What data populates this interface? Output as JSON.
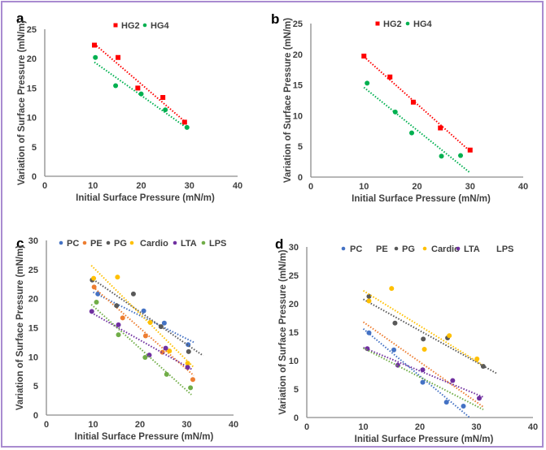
{
  "colors": {
    "HG2": "#ff0000",
    "HG4": "#00b050",
    "PC": "#4472c4",
    "PE": "#ed7d31",
    "PG": "#595959",
    "Cardio": "#ffc000",
    "LTA": "#7030a0",
    "LPS": "#70ad47",
    "frame": "#a98bd0"
  },
  "chart_data": [
    {
      "panel": "a",
      "type": "scatter",
      "xlabel": "Initial Surface Pressure (mN/m)",
      "ylabel": "Variation of Surface Pressure (mN/m)",
      "xlim": [
        0,
        40
      ],
      "ylim": [
        0,
        25
      ],
      "xticks": [
        0,
        10,
        20,
        30,
        40
      ],
      "yticks": [
        0,
        5,
        10,
        15,
        20,
        25
      ],
      "legend_position": "top-center",
      "series": [
        {
          "name": "HG2",
          "marker": "square",
          "points": [
            [
              10.3,
              22.3
            ],
            [
              15.2,
              20.2
            ],
            [
              19.3,
              15.0
            ],
            [
              24.5,
              13.4
            ],
            [
              29.0,
              9.2
            ]
          ],
          "trend": [
            [
              10.3,
              22.5
            ],
            [
              29.5,
              9.0
            ]
          ]
        },
        {
          "name": "HG4",
          "marker": "circle",
          "points": [
            [
              10.5,
              20.2
            ],
            [
              14.7,
              15.4
            ],
            [
              20.0,
              14.0
            ],
            [
              25.0,
              11.3
            ],
            [
              29.5,
              8.3
            ]
          ],
          "trend": [
            [
              10.3,
              19.4
            ],
            [
              29.5,
              8.2
            ]
          ]
        }
      ]
    },
    {
      "panel": "b",
      "type": "scatter",
      "xlabel": "Initial Surface Pressure (mN/m)",
      "ylabel": "Variation of Surface Pressure (mN/m)",
      "xlim": [
        0,
        40
      ],
      "ylim": [
        0,
        25
      ],
      "xticks": [
        0,
        10,
        20,
        30,
        40
      ],
      "yticks": [
        0,
        5,
        10,
        15,
        20,
        25
      ],
      "legend_position": "top-center",
      "series": [
        {
          "name": "HG2",
          "marker": "square",
          "points": [
            [
              10.0,
              19.7
            ],
            [
              14.9,
              16.3
            ],
            [
              19.3,
              12.2
            ],
            [
              24.4,
              8.0
            ],
            [
              30.0,
              4.4
            ]
          ],
          "trend": [
            [
              10.0,
              19.6
            ],
            [
              30.0,
              4.2
            ]
          ]
        },
        {
          "name": "HG4",
          "marker": "circle",
          "points": [
            [
              10.6,
              15.3
            ],
            [
              15.9,
              10.6
            ],
            [
              19.0,
              7.2
            ],
            [
              24.6,
              3.4
            ],
            [
              28.2,
              3.5
            ]
          ],
          "trend": [
            [
              10.0,
              14.6
            ],
            [
              30.0,
              0.7
            ]
          ]
        }
      ]
    },
    {
      "panel": "c",
      "type": "scatter",
      "xlabel": "Initial Surface Pressure (mN/m)",
      "ylabel": "Variation of Surface Pressure (mN/m)",
      "xlim": [
        0,
        40
      ],
      "ylim": [
        0,
        30
      ],
      "xticks": [
        0,
        10,
        20,
        30,
        40
      ],
      "yticks": [
        0,
        5,
        10,
        15,
        20,
        25,
        30
      ],
      "legend_position": "top",
      "series": [
        {
          "name": "PC",
          "marker": "circle",
          "points": [
            [
              11.0,
              20.8
            ],
            [
              20.8,
              17.9
            ],
            [
              25.2,
              15.8
            ],
            [
              30.3,
              12.1
            ]
          ],
          "trend": [
            [
              10.0,
              21.1
            ],
            [
              31.5,
              12.5
            ]
          ]
        },
        {
          "name": "PE",
          "marker": "circle",
          "points": [
            [
              10.2,
              22.0
            ],
            [
              16.3,
              16.7
            ],
            [
              21.2,
              13.6
            ],
            [
              24.8,
              10.8
            ],
            [
              31.3,
              6.1
            ]
          ],
          "trend": [
            [
              10.0,
              22.0
            ],
            [
              31.5,
              6.8
            ]
          ]
        },
        {
          "name": "PG",
          "marker": "circle",
          "points": [
            [
              9.8,
              23.2
            ],
            [
              15.0,
              18.8
            ],
            [
              18.6,
              20.8
            ],
            [
              24.5,
              15.2
            ],
            [
              30.4,
              10.9
            ]
          ],
          "trend": [
            [
              10.0,
              23.3
            ],
            [
              33.5,
              10.2
            ]
          ]
        },
        {
          "name": "Cardio",
          "marker": "circle",
          "points": [
            [
              10.1,
              23.5
            ],
            [
              15.2,
              23.7
            ],
            [
              22.2,
              15.9
            ],
            [
              26.3,
              11.0
            ],
            [
              30.2,
              8.9
            ]
          ],
          "trend": [
            [
              9.6,
              25.7
            ],
            [
              31.5,
              8.2
            ]
          ]
        },
        {
          "name": "LTA",
          "marker": "circle",
          "points": [
            [
              9.7,
              17.8
            ],
            [
              15.4,
              15.5
            ],
            [
              22.0,
              10.3
            ],
            [
              25.5,
              11.5
            ],
            [
              30.2,
              8.2
            ]
          ],
          "trend": [
            [
              9.6,
              17.6
            ],
            [
              31.2,
              7.8
            ]
          ]
        },
        {
          "name": "LPS",
          "marker": "circle",
          "points": [
            [
              10.7,
              19.4
            ],
            [
              15.4,
              13.8
            ],
            [
              21.1,
              9.9
            ],
            [
              25.7,
              7.0
            ],
            [
              30.8,
              4.7
            ]
          ],
          "trend": [
            [
              9.6,
              19.0
            ],
            [
              31.0,
              3.5
            ]
          ]
        }
      ]
    },
    {
      "panel": "d",
      "type": "scatter",
      "xlabel": "Initial Surface Pressure (mN/m)",
      "ylabel": "Variation of Surface Pressure (mN/m)",
      "xlim": [
        0,
        40
      ],
      "ylim": [
        0,
        30
      ],
      "xticks": [
        0,
        10,
        20,
        30,
        40
      ],
      "yticks": [
        0,
        5,
        10,
        15,
        20,
        25,
        30
      ],
      "legend_position": "top",
      "series": [
        {
          "name": "PC",
          "marker": "circle",
          "points": [
            [
              11.0,
              14.9
            ],
            [
              15.4,
              11.9
            ],
            [
              20.5,
              6.2
            ],
            [
              24.7,
              2.7
            ],
            [
              27.7,
              2.0
            ]
          ],
          "trend": [
            [
              10.0,
              15.6
            ],
            [
              28.8,
              0.0
            ]
          ]
        },
        {
          "name": "PE",
          "marker": "none",
          "points": [],
          "trend": [
            [
              10.0,
              16.8
            ],
            [
              31.3,
              1.8
            ]
          ]
        },
        {
          "name": "PG",
          "marker": "circle",
          "points": [
            [
              11.0,
              21.3
            ],
            [
              15.6,
              16.6
            ],
            [
              20.6,
              13.8
            ],
            [
              24.9,
              14.0
            ],
            [
              31.2,
              9.0
            ]
          ],
          "trend": [
            [
              10.0,
              20.8
            ],
            [
              33.5,
              7.8
            ]
          ]
        },
        {
          "name": "Cardio",
          "marker": "circle",
          "points": [
            [
              11.0,
              20.5
            ],
            [
              15.0,
              22.7
            ],
            [
              20.8,
              12.0
            ],
            [
              25.2,
              14.4
            ],
            [
              30.1,
              10.3
            ]
          ],
          "trend": [
            [
              10.0,
              22.3
            ],
            [
              31.0,
              9.3
            ]
          ]
        },
        {
          "name": "LTA",
          "marker": "circle",
          "points": [
            [
              10.7,
              12.1
            ],
            [
              16.1,
              9.2
            ],
            [
              20.5,
              8.4
            ],
            [
              25.8,
              6.5
            ],
            [
              30.5,
              3.4
            ]
          ],
          "trend": [
            [
              10.0,
              12.3
            ],
            [
              31.2,
              3.6
            ]
          ]
        },
        {
          "name": "LPS",
          "marker": "none",
          "points": [],
          "trend": [
            [
              10.0,
              12.2
            ],
            [
              31.2,
              1.4
            ]
          ]
        }
      ]
    }
  ]
}
